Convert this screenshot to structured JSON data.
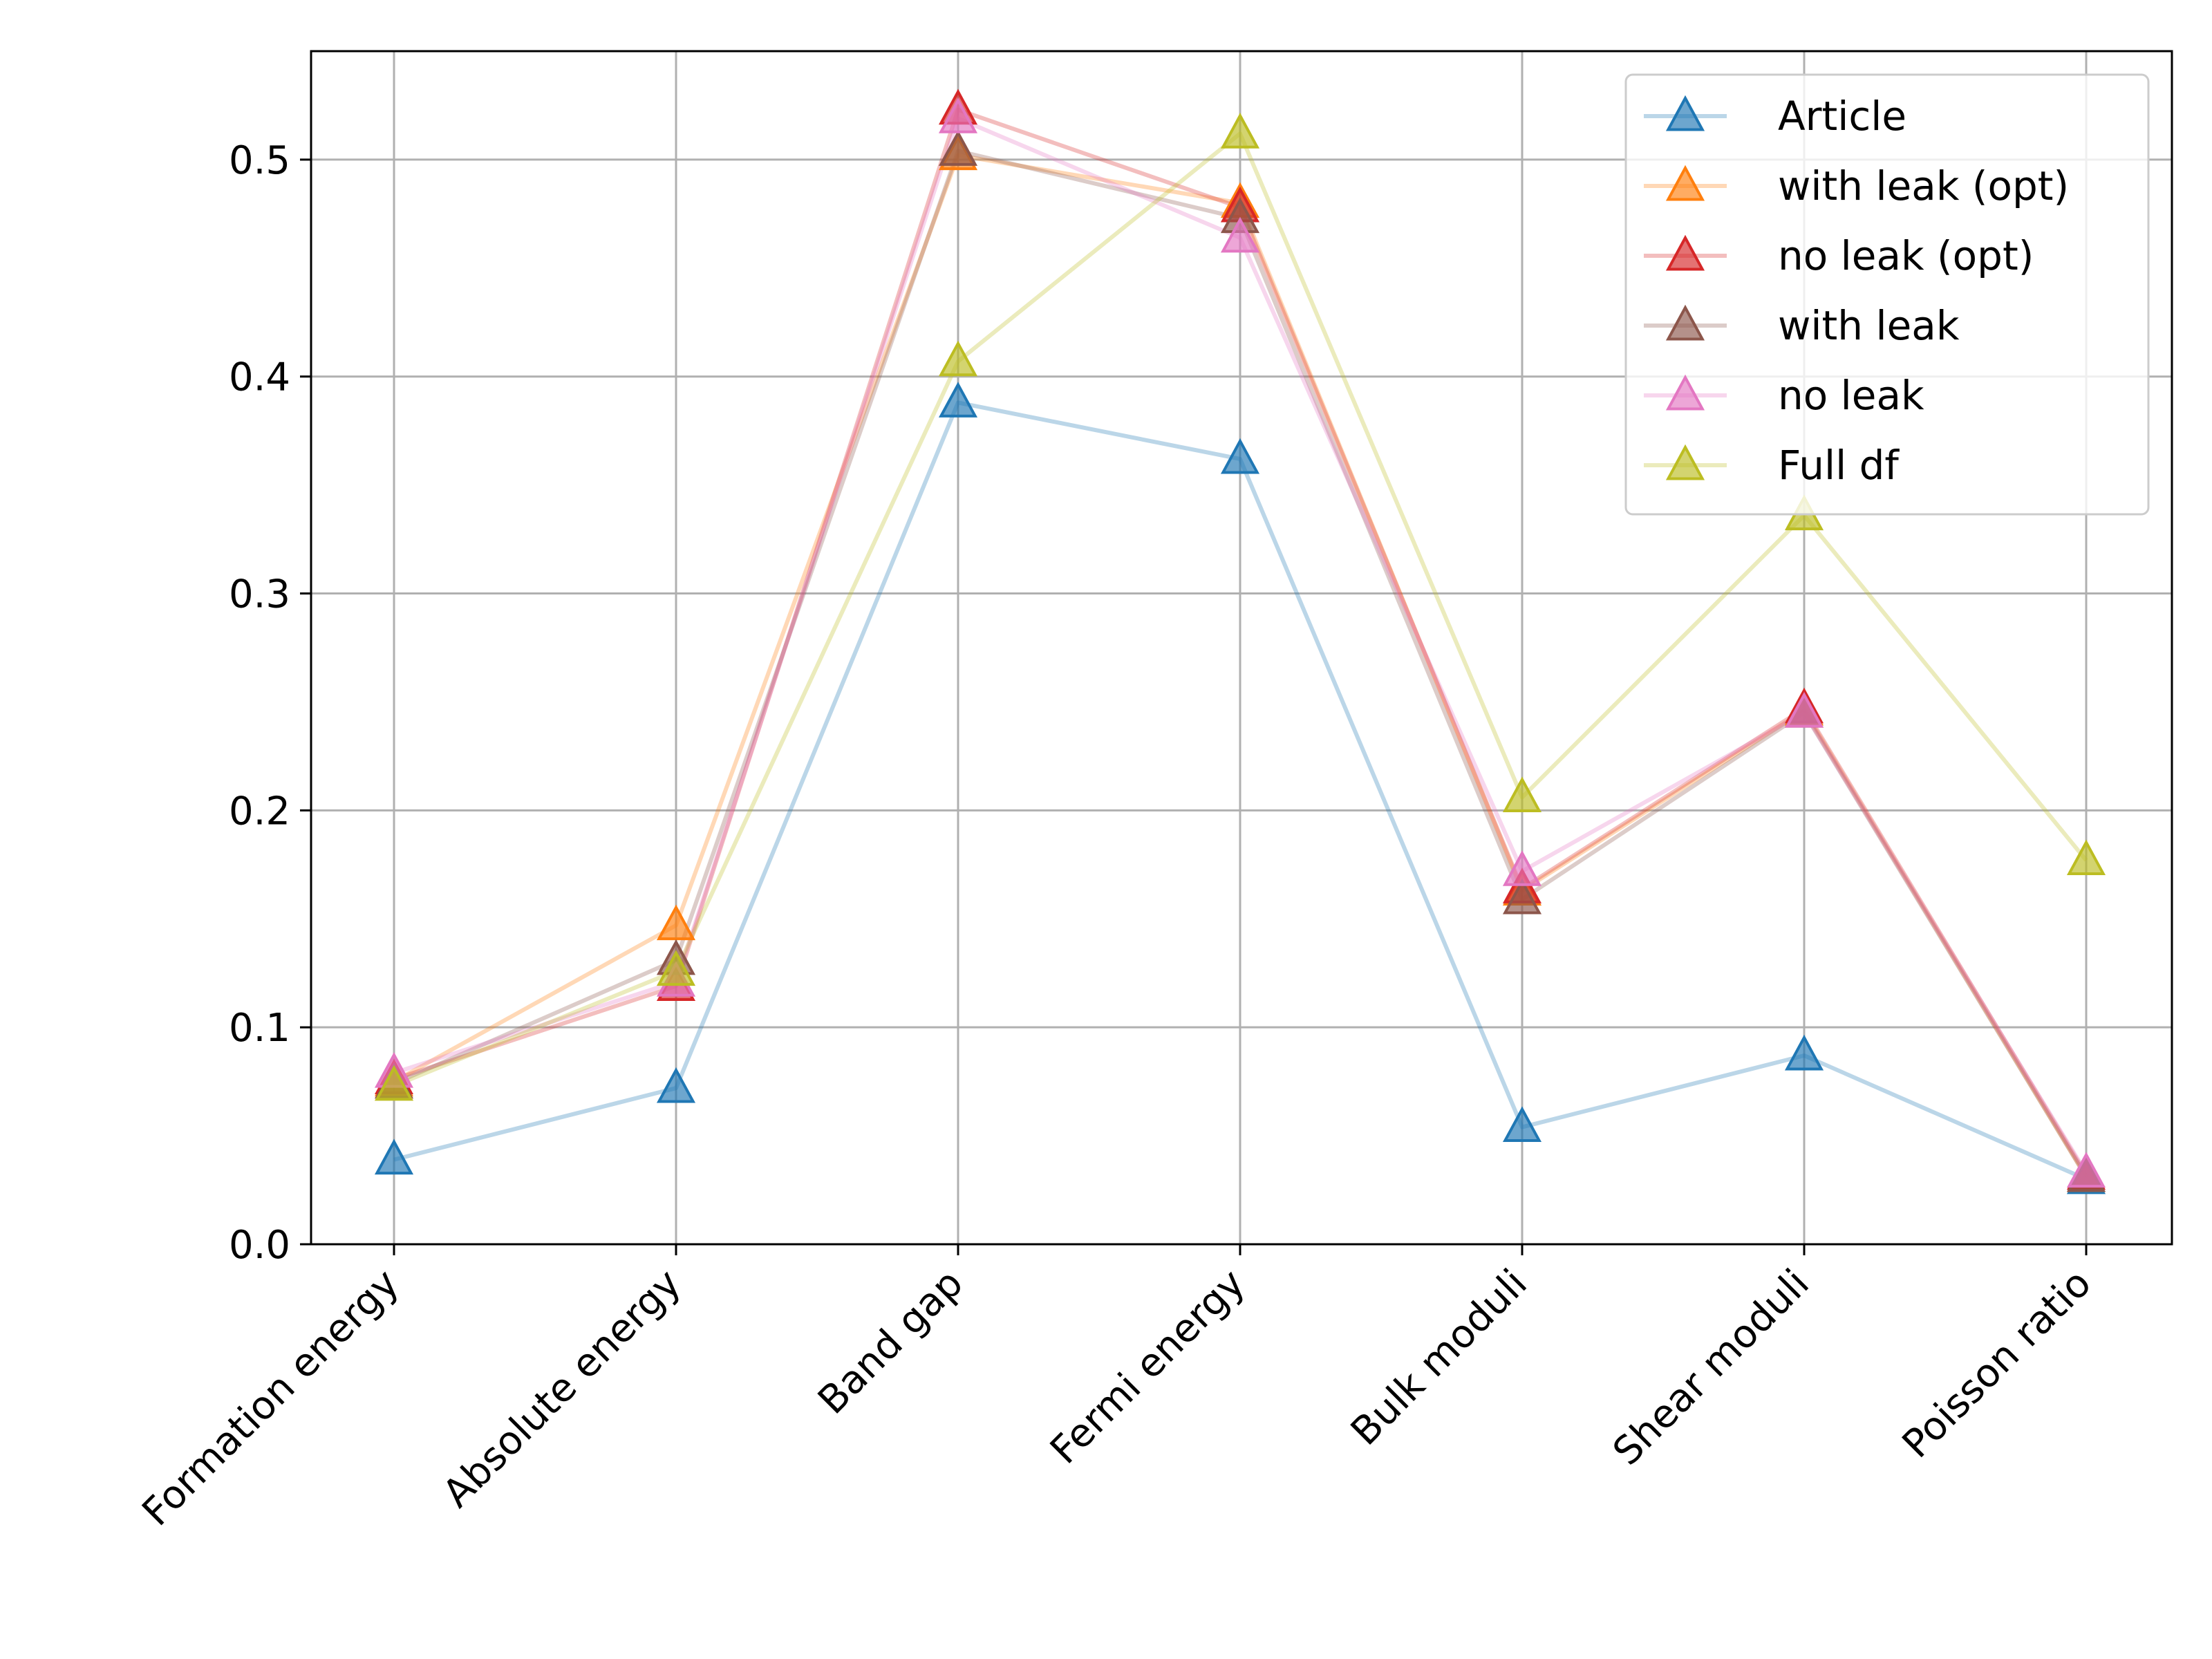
{
  "chart_data": {
    "type": "line",
    "categories": [
      "Formation energy",
      "Absolute energy",
      "Band gap",
      "Fermi energy",
      "Bulk moduli",
      "Shear moduli",
      "Poisson ratio"
    ],
    "ylim": [
      0.0,
      0.55
    ],
    "yticks": [
      0.0,
      0.1,
      0.2,
      0.3,
      0.4,
      0.5
    ],
    "ytick_labels": [
      "0.0",
      "0.1",
      "0.2",
      "0.3",
      "0.4",
      "0.5"
    ],
    "grid": true,
    "legend_position": "top-right",
    "marker": "triangle-up",
    "series": [
      {
        "name": "Article",
        "color": "#1f77b4",
        "values": [
          0.039,
          0.072,
          0.388,
          0.362,
          0.054,
          0.087,
          0.03
        ]
      },
      {
        "name": "with leak (opt)",
        "color": "#ff7f0e",
        "values": [
          0.075,
          0.147,
          0.502,
          0.48,
          0.163,
          0.246,
          0.031
        ]
      },
      {
        "name": "no leak (opt)",
        "color": "#d62728",
        "values": [
          0.076,
          0.119,
          0.523,
          0.478,
          0.164,
          0.247,
          0.032
        ]
      },
      {
        "name": "with leak",
        "color": "#8c564b",
        "values": [
          0.074,
          0.131,
          0.504,
          0.473,
          0.159,
          0.245,
          0.031
        ]
      },
      {
        "name": "no leak",
        "color": "#e377c2",
        "values": [
          0.079,
          0.121,
          0.519,
          0.464,
          0.172,
          0.245,
          0.033
        ]
      },
      {
        "name": "Full df",
        "color": "#bcbd22",
        "values": [
          0.073,
          0.126,
          0.407,
          0.512,
          0.206,
          0.336,
          0.177
        ]
      }
    ]
  }
}
